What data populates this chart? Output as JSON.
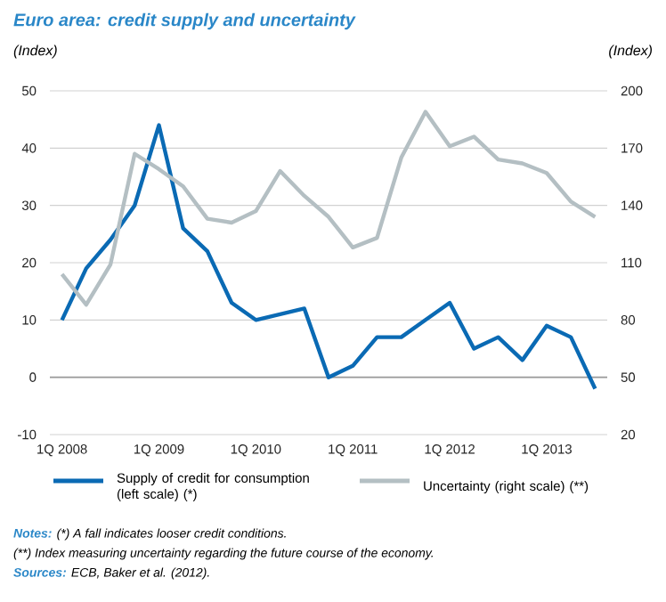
{
  "chart_data": {
    "type": "line",
    "title": "Euro area: credit supply and uncertainty",
    "ylabel": "(Index)",
    "y2label": "(Index)",
    "categories": [
      "1Q 2008",
      null,
      null,
      null,
      "1Q 2009",
      null,
      null,
      null,
      "1Q 2010",
      null,
      null,
      null,
      "1Q 2011",
      null,
      null,
      null,
      "1Q 2012",
      null,
      null,
      null,
      "1Q 2013",
      null,
      null
    ],
    "series": [
      {
        "name": "Supply of credit for consumption (left scale) (*)",
        "color": "#0a6ab4",
        "values": [
          10,
          19,
          24,
          30,
          44,
          26,
          22,
          13,
          10,
          11,
          12,
          0,
          2,
          7,
          7,
          10,
          13,
          5,
          7,
          3,
          9,
          7,
          -2
        ]
      },
      {
        "name": "Uncertainty (right scale) (**)",
        "color": "#b4bfc3",
        "axis": "y2",
        "values": [
          104,
          88,
          109,
          167,
          159,
          150,
          133,
          131,
          137,
          158,
          145,
          134,
          118,
          123,
          165,
          189,
          171,
          176,
          164,
          162,
          157,
          142,
          134
        ]
      }
    ],
    "ylim": [
      -10,
      50
    ],
    "yticks": [
      -10,
      0,
      10,
      20,
      30,
      40,
      50
    ],
    "y2lim": [
      20,
      200
    ],
    "y2ticks": [
      20,
      50,
      80,
      110,
      140,
      170,
      200
    ],
    "grid": "y",
    "legend": "bottom",
    "ref_lines": [
      {
        "axis": "y",
        "value": 0,
        "color": "#9a9a9a"
      }
    ],
    "annotations": [
      "Notes:",
      "(*) A fall indicates looser credit conditions.",
      "(**) Index measuring uncertainty regarding the future course of the economy.",
      "Sources:",
      "ECB, Baker et al. (2012)."
    ]
  }
}
